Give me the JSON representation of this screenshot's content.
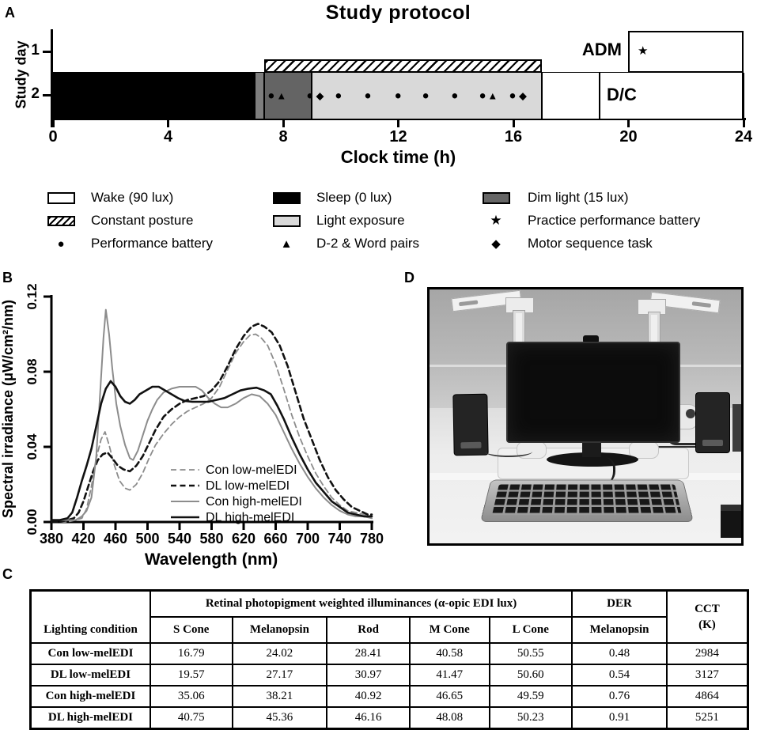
{
  "panels": {
    "a": "A",
    "b": "B",
    "c": "C",
    "d": "D"
  },
  "symbols": {
    "circle": "●",
    "triangle": "▲",
    "diamond": "◆",
    "star": "★"
  },
  "protocol": {
    "title": "Study protocol",
    "y_axis_label": "Study day",
    "x_axis_label": "Clock time (h)",
    "x_ticks": [
      0,
      4,
      8,
      12,
      16,
      20,
      24
    ],
    "day_labels": [
      "1",
      "2"
    ],
    "adm_label": "ADM",
    "dc_label": "D/C",
    "adm_box": {
      "start_h": 20,
      "end_h": 24,
      "star_h": 20.5
    },
    "dc_divider_h": 19,
    "day2_segments": [
      {
        "name": "sleep",
        "start_h": 0,
        "end_h": 7,
        "color": "#000000"
      },
      {
        "name": "dim-light-lead",
        "start_h": 7,
        "end_h": 7.35,
        "color": "#7e7e7e"
      },
      {
        "name": "dim-light",
        "start_h": 7.35,
        "end_h": 9,
        "color": "#646464"
      },
      {
        "name": "light-exposure",
        "start_h": 9,
        "end_h": 17,
        "color": "#d9d9d9"
      },
      {
        "name": "wake",
        "start_h": 17,
        "end_h": 24,
        "color": "#ffffff"
      }
    ],
    "segment_boundaries_h": [
      7,
      7.35,
      9,
      17,
      19
    ],
    "constant_posture_bar": {
      "start_h": 7.35,
      "end_h": 17
    },
    "markers": {
      "performance_battery_h": [
        7.58,
        8.93,
        9.92,
        10.94,
        11.99,
        12.95,
        13.96,
        14.93,
        15.97
      ],
      "d2_word_pairs_h": [
        7.94,
        15.28
      ],
      "motor_sequence_h": [
        9.28,
        16.33
      ]
    }
  },
  "protocol_legend": {
    "items": [
      {
        "symbol": "wake-swatch",
        "label": "Wake (90 lux)"
      },
      {
        "symbol": "sleep-swatch",
        "label": "Sleep (0 lux)"
      },
      {
        "symbol": "dim-swatch",
        "label": "Dim light (15 lux)"
      },
      {
        "symbol": "posture-swatch",
        "label": "Constant posture"
      },
      {
        "symbol": "light-swatch",
        "label": "Light exposure"
      },
      {
        "symbol": "star",
        "label": "Practice performance battery"
      },
      {
        "symbol": "circle",
        "label": "Performance battery"
      },
      {
        "symbol": "triangle",
        "label": "D-2 & Word pairs"
      },
      {
        "symbol": "diamond",
        "label": "Motor sequence task"
      }
    ]
  },
  "chart_data": {
    "type": "line",
    "title": "",
    "xlabel": "Wavelength (nm)",
    "ylabel": "Spectral irradiance (μW/cm²/nm)",
    "xlim": [
      380,
      780
    ],
    "ylim": [
      0,
      0.12
    ],
    "x_ticks": [
      380,
      420,
      460,
      500,
      540,
      580,
      620,
      660,
      700,
      740,
      780
    ],
    "y_ticks": [
      "0.00",
      "0.04",
      "0.08",
      "0.12"
    ],
    "grid": false,
    "legend_position": "inside-bottom-center",
    "series": [
      {
        "name": "Con low-melEDI",
        "color": "#8c8c8c",
        "dash": "7 4.5",
        "width": 1.8,
        "points": [
          [
            380,
            0
          ],
          [
            390,
            0
          ],
          [
            400,
            0
          ],
          [
            410,
            0.001
          ],
          [
            418,
            0.002
          ],
          [
            424,
            0.007
          ],
          [
            430,
            0.019
          ],
          [
            436,
            0.034
          ],
          [
            442,
            0.044
          ],
          [
            447,
            0.048
          ],
          [
            452,
            0.041
          ],
          [
            458,
            0.031
          ],
          [
            465,
            0.022
          ],
          [
            472,
            0.018
          ],
          [
            478,
            0.017
          ],
          [
            486,
            0.02
          ],
          [
            494,
            0.026
          ],
          [
            502,
            0.034
          ],
          [
            510,
            0.041
          ],
          [
            520,
            0.047
          ],
          [
            530,
            0.052
          ],
          [
            540,
            0.056
          ],
          [
            550,
            0.059
          ],
          [
            560,
            0.061
          ],
          [
            570,
            0.063
          ],
          [
            580,
            0.066
          ],
          [
            590,
            0.072
          ],
          [
            600,
            0.081
          ],
          [
            610,
            0.09
          ],
          [
            620,
            0.096
          ],
          [
            628,
            0.0995
          ],
          [
            635,
            0.1
          ],
          [
            642,
            0.098
          ],
          [
            650,
            0.094
          ],
          [
            660,
            0.084
          ],
          [
            670,
            0.071
          ],
          [
            680,
            0.057
          ],
          [
            690,
            0.045
          ],
          [
            700,
            0.035
          ],
          [
            710,
            0.026
          ],
          [
            720,
            0.019
          ],
          [
            730,
            0.013
          ],
          [
            740,
            0.009
          ],
          [
            750,
            0.006
          ],
          [
            760,
            0.005
          ],
          [
            770,
            0.004
          ],
          [
            780,
            0.003
          ]
        ]
      },
      {
        "name": "DL low-melEDI",
        "color": "#111111",
        "dash": "7 4.5",
        "width": 2.6,
        "points": [
          [
            380,
            0
          ],
          [
            390,
            0
          ],
          [
            400,
            0.001
          ],
          [
            408,
            0.002
          ],
          [
            414,
            0.005
          ],
          [
            420,
            0.011
          ],
          [
            426,
            0.019
          ],
          [
            432,
            0.027
          ],
          [
            438,
            0.033
          ],
          [
            444,
            0.036
          ],
          [
            450,
            0.037
          ],
          [
            456,
            0.034
          ],
          [
            463,
            0.03
          ],
          [
            470,
            0.028
          ],
          [
            478,
            0.027
          ],
          [
            486,
            0.03
          ],
          [
            494,
            0.035
          ],
          [
            502,
            0.042
          ],
          [
            510,
            0.049
          ],
          [
            520,
            0.056
          ],
          [
            530,
            0.06
          ],
          [
            540,
            0.063
          ],
          [
            550,
            0.065
          ],
          [
            560,
            0.066
          ],
          [
            570,
            0.067
          ],
          [
            580,
            0.07
          ],
          [
            590,
            0.075
          ],
          [
            600,
            0.083
          ],
          [
            610,
            0.092
          ],
          [
            620,
            0.099
          ],
          [
            630,
            0.104
          ],
          [
            638,
            0.1055
          ],
          [
            646,
            0.104
          ],
          [
            655,
            0.101
          ],
          [
            665,
            0.094
          ],
          [
            675,
            0.083
          ],
          [
            685,
            0.069
          ],
          [
            695,
            0.055
          ],
          [
            705,
            0.044
          ],
          [
            715,
            0.033
          ],
          [
            725,
            0.024
          ],
          [
            735,
            0.017
          ],
          [
            745,
            0.012
          ],
          [
            755,
            0.008
          ],
          [
            765,
            0.006
          ],
          [
            775,
            0.004
          ],
          [
            780,
            0.004
          ]
        ]
      },
      {
        "name": "Con high-melEDI",
        "color": "#8c8c8c",
        "dash": "",
        "width": 2,
        "points": [
          [
            380,
            0.001
          ],
          [
            390,
            0.001
          ],
          [
            400,
            0.001
          ],
          [
            410,
            0.001
          ],
          [
            418,
            0.003
          ],
          [
            424,
            0.006
          ],
          [
            430,
            0.013
          ],
          [
            436,
            0.035
          ],
          [
            441,
            0.07
          ],
          [
            445,
            0.098
          ],
          [
            448,
            0.113
          ],
          [
            452,
            0.1
          ],
          [
            456,
            0.082
          ],
          [
            461,
            0.063
          ],
          [
            466,
            0.051
          ],
          [
            472,
            0.041
          ],
          [
            478,
            0.034
          ],
          [
            482,
            0.033
          ],
          [
            488,
            0.038
          ],
          [
            494,
            0.046
          ],
          [
            500,
            0.054
          ],
          [
            506,
            0.06
          ],
          [
            512,
            0.065
          ],
          [
            520,
            0.069
          ],
          [
            530,
            0.071
          ],
          [
            540,
            0.072
          ],
          [
            550,
            0.072
          ],
          [
            560,
            0.072
          ],
          [
            568,
            0.07
          ],
          [
            576,
            0.066
          ],
          [
            584,
            0.063
          ],
          [
            592,
            0.061
          ],
          [
            600,
            0.061
          ],
          [
            610,
            0.063
          ],
          [
            620,
            0.066
          ],
          [
            630,
            0.068
          ],
          [
            640,
            0.067
          ],
          [
            650,
            0.063
          ],
          [
            660,
            0.057
          ],
          [
            670,
            0.048
          ],
          [
            680,
            0.039
          ],
          [
            690,
            0.031
          ],
          [
            700,
            0.024
          ],
          [
            710,
            0.018
          ],
          [
            720,
            0.013
          ],
          [
            730,
            0.009
          ],
          [
            740,
            0.006
          ],
          [
            750,
            0.004
          ],
          [
            760,
            0.003
          ],
          [
            770,
            0.003
          ],
          [
            780,
            0.002
          ]
        ]
      },
      {
        "name": "DL high-melEDI",
        "color": "#111111",
        "dash": "",
        "width": 2.6,
        "points": [
          [
            380,
            0.001
          ],
          [
            390,
            0.001
          ],
          [
            400,
            0.002
          ],
          [
            406,
            0.005
          ],
          [
            412,
            0.013
          ],
          [
            418,
            0.022
          ],
          [
            424,
            0.03
          ],
          [
            430,
            0.039
          ],
          [
            436,
            0.051
          ],
          [
            442,
            0.063
          ],
          [
            448,
            0.071
          ],
          [
            454,
            0.075
          ],
          [
            460,
            0.072
          ],
          [
            466,
            0.067
          ],
          [
            472,
            0.064
          ],
          [
            478,
            0.063
          ],
          [
            484,
            0.065
          ],
          [
            490,
            0.068
          ],
          [
            498,
            0.07
          ],
          [
            506,
            0.072
          ],
          [
            514,
            0.072
          ],
          [
            522,
            0.07
          ],
          [
            530,
            0.068
          ],
          [
            538,
            0.066
          ],
          [
            546,
            0.0645
          ],
          [
            556,
            0.064
          ],
          [
            566,
            0.064
          ],
          [
            576,
            0.064
          ],
          [
            586,
            0.065
          ],
          [
            596,
            0.066
          ],
          [
            606,
            0.068
          ],
          [
            616,
            0.07
          ],
          [
            626,
            0.071
          ],
          [
            636,
            0.0715
          ],
          [
            646,
            0.07
          ],
          [
            654,
            0.068
          ],
          [
            662,
            0.062
          ],
          [
            670,
            0.055
          ],
          [
            680,
            0.045
          ],
          [
            690,
            0.036
          ],
          [
            700,
            0.028
          ],
          [
            710,
            0.021
          ],
          [
            720,
            0.016
          ],
          [
            730,
            0.011
          ],
          [
            740,
            0.008
          ],
          [
            750,
            0.005
          ],
          [
            760,
            0.004
          ],
          [
            770,
            0.003
          ],
          [
            780,
            0.003
          ]
        ]
      }
    ]
  },
  "table": {
    "row_header": "Lighting condition",
    "group_header": "Retinal photopigment weighted illuminances (α-opic EDI lux)",
    "der_header": "DER",
    "cct_line1": "CCT",
    "cct_line2": "(K)",
    "sub_headers": [
      "S Cone",
      "Melanopsin",
      "Rod",
      "M Cone",
      "L Cone",
      "Melanopsin"
    ],
    "rows": [
      {
        "condition": "Con low-melEDI",
        "values": [
          "16.79",
          "24.02",
          "28.41",
          "40.58",
          "50.55",
          "0.48",
          "2984"
        ]
      },
      {
        "condition": "DL low-melEDI",
        "values": [
          "19.57",
          "27.17",
          "30.97",
          "41.47",
          "50.60",
          "0.54",
          "3127"
        ]
      },
      {
        "condition": "Con high-melEDI",
        "values": [
          "35.06",
          "38.21",
          "40.92",
          "46.65",
          "49.59",
          "0.76",
          "4864"
        ]
      },
      {
        "condition": "DL high-melEDI",
        "values": [
          "40.75",
          "45.36",
          "46.16",
          "48.08",
          "50.23",
          "0.91",
          "5251"
        ]
      }
    ]
  }
}
